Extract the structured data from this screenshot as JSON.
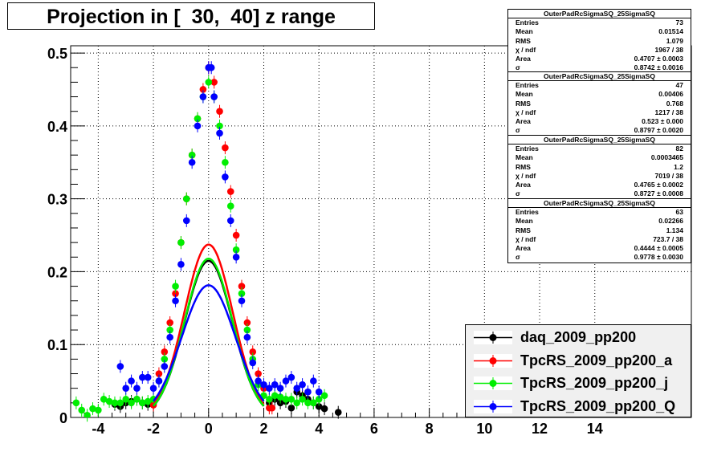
{
  "title": "Projection in [  30,  40] z range",
  "colors": {
    "black": "#000000",
    "red": "#ff0000",
    "green": "#00ee00",
    "blue": "#0000ff"
  },
  "stat_boxes": [
    {
      "name": "OuterPadRcSigmaSQ_25SigmaSQ",
      "rows": [
        {
          "label": "Entries",
          "value": "73"
        },
        {
          "label": "Mean",
          "value": "0.01514"
        },
        {
          "label": "RMS",
          "value": "1.079"
        },
        {
          "label": "χ  / ndf",
          "value": "1967 / 38"
        },
        {
          "label": "Area",
          "value": "0.4707 ± 0.0003"
        },
        {
          "label": "σ",
          "value": "0.8742 ± 0.0016"
        }
      ]
    },
    {
      "name": "OuterPadRcSigmaSQ_25SigmaSQ",
      "rows": [
        {
          "label": "Entries",
          "value": "47"
        },
        {
          "label": "Mean",
          "value": "0.00406"
        },
        {
          "label": "RMS",
          "value": "0.768"
        },
        {
          "label": "χ  / ndf",
          "value": "1217 / 38"
        },
        {
          "label": "Area",
          "value": "0.523 ± 0.000"
        },
        {
          "label": "σ",
          "value": "0.8797 ± 0.0020"
        }
      ]
    },
    {
      "name": "OuterPadRcSigmaSQ_25SigmaSQ",
      "rows": [
        {
          "label": "Entries",
          "value": "82"
        },
        {
          "label": "Mean",
          "value": "0.0003465"
        },
        {
          "label": "RMS",
          "value": "1.2"
        },
        {
          "label": "χ  / ndf",
          "value": "7019 / 38"
        },
        {
          "label": "Area",
          "value": "0.4765 ± 0.0002"
        },
        {
          "label": "σ",
          "value": "0.8727 ± 0.0008"
        }
      ]
    },
    {
      "name": "OuterPadRcSigmaSQ_25SigmaSQ",
      "rows": [
        {
          "label": "Entries",
          "value": "63"
        },
        {
          "label": "Mean",
          "value": "0.02266"
        },
        {
          "label": "RMS",
          "value": "1.134"
        },
        {
          "label": "χ  / ndf",
          "value": "723.7 / 38"
        },
        {
          "label": "Area",
          "value": "0.4444 ± 0.0005"
        },
        {
          "label": "σ",
          "value": "0.9778 ± 0.0030"
        }
      ]
    }
  ],
  "chart_data": {
    "type": "scatter",
    "title": "Projection in [  30,  40] z range",
    "xlim": [
      -5,
      17.5
    ],
    "ylim": [
      0,
      0.51
    ],
    "x_ticks": [
      -4,
      -2,
      0,
      2,
      4,
      6,
      8,
      10,
      12,
      14
    ],
    "y_ticks": [
      0,
      0.1,
      0.2,
      0.3,
      0.4,
      0.5
    ],
    "x_tick_labels": [
      "-4",
      "-2",
      "0",
      "2",
      "4",
      "6",
      "8",
      "10",
      "12",
      "14"
    ],
    "y_tick_labels": [
      "0",
      "0.1",
      "0.2",
      "0.3",
      "0.4",
      "0.5"
    ],
    "grid": true,
    "legend_position": "bottom-right",
    "series": [
      {
        "name": "daq_2009_pp200",
        "color": "#000000",
        "fit": {
          "area": 0.4707,
          "sigma": 0.8742,
          "mean": 0.0
        },
        "points": [
          [
            -3.4,
            0.018
          ],
          [
            -3.2,
            0.015
          ],
          [
            -3.0,
            0.02
          ],
          [
            -2.8,
            0.022
          ],
          [
            -2.6,
            0.025
          ],
          [
            -2.4,
            0.02
          ],
          [
            -2.2,
            0.018
          ],
          [
            -2.0,
            0.02
          ],
          [
            2.2,
            0.02
          ],
          [
            2.4,
            0.025
          ],
          [
            2.6,
            0.02
          ],
          [
            2.8,
            0.022
          ],
          [
            3.0,
            0.013
          ],
          [
            3.2,
            0.035
          ],
          [
            3.4,
            0.03
          ],
          [
            3.6,
            0.025
          ],
          [
            3.8,
            0.02
          ],
          [
            4.0,
            0.015
          ],
          [
            4.2,
            0.012
          ],
          [
            4.7,
            0.007
          ]
        ]
      },
      {
        "name": "TpcRS_2009_pp200_a",
        "color": "#ff0000",
        "fit": {
          "area": 0.523,
          "sigma": 0.8797,
          "mean": 0.0
        },
        "points": [
          [
            -2.0,
            0.017
          ],
          [
            -1.8,
            0.06
          ],
          [
            -1.6,
            0.09
          ],
          [
            -1.4,
            0.13
          ],
          [
            -1.2,
            0.17
          ],
          [
            -1.0,
            0.24
          ],
          [
            -0.8,
            0.3
          ],
          [
            -0.6,
            0.36
          ],
          [
            -0.4,
            0.41
          ],
          [
            -0.2,
            0.45
          ],
          [
            0.0,
            0.48
          ],
          [
            0.2,
            0.46
          ],
          [
            0.4,
            0.42
          ],
          [
            0.6,
            0.37
          ],
          [
            0.8,
            0.31
          ],
          [
            1.0,
            0.25
          ],
          [
            1.2,
            0.18
          ],
          [
            1.4,
            0.13
          ],
          [
            1.6,
            0.09
          ],
          [
            1.8,
            0.06
          ],
          [
            2.0,
            0.04
          ],
          [
            2.2,
            0.013
          ],
          [
            2.3,
            0.013
          ]
        ]
      },
      {
        "name": "TpcRS_2009_pp200_j",
        "color": "#00ee00",
        "fit": {
          "area": 0.4765,
          "sigma": 0.8727,
          "mean": 0.0
        },
        "points": [
          [
            -4.8,
            0.02
          ],
          [
            -4.6,
            0.01
          ],
          [
            -4.4,
            0.003
          ],
          [
            -4.2,
            0.012
          ],
          [
            -4.0,
            0.01
          ],
          [
            -3.8,
            0.025
          ],
          [
            -3.6,
            0.022
          ],
          [
            -3.4,
            0.02
          ],
          [
            -3.2,
            0.02
          ],
          [
            -3.0,
            0.025
          ],
          [
            -2.8,
            0.02
          ],
          [
            -2.6,
            0.025
          ],
          [
            -2.4,
            0.02
          ],
          [
            -2.2,
            0.022
          ],
          [
            -2.0,
            0.025
          ],
          [
            -1.8,
            0.05
          ],
          [
            -1.6,
            0.08
          ],
          [
            -1.4,
            0.12
          ],
          [
            -1.2,
            0.18
          ],
          [
            -1.0,
            0.24
          ],
          [
            -0.8,
            0.3
          ],
          [
            -0.6,
            0.36
          ],
          [
            -0.4,
            0.41
          ],
          [
            -0.2,
            0.44
          ],
          [
            0.0,
            0.46
          ],
          [
            0.2,
            0.44
          ],
          [
            0.4,
            0.4
          ],
          [
            0.6,
            0.35
          ],
          [
            0.8,
            0.29
          ],
          [
            1.0,
            0.23
          ],
          [
            1.2,
            0.17
          ],
          [
            1.4,
            0.12
          ],
          [
            1.6,
            0.08
          ],
          [
            1.8,
            0.045
          ],
          [
            2.0,
            0.03
          ],
          [
            2.2,
            0.025
          ],
          [
            2.4,
            0.03
          ],
          [
            2.6,
            0.028
          ],
          [
            2.8,
            0.025
          ],
          [
            3.0,
            0.025
          ],
          [
            3.2,
            0.02
          ],
          [
            3.4,
            0.025
          ],
          [
            3.6,
            0.02
          ],
          [
            3.8,
            0.02
          ],
          [
            4.0,
            0.025
          ],
          [
            4.2,
            0.03
          ]
        ]
      },
      {
        "name": "TpcRS_2009_pp200_Q",
        "color": "#0000ff",
        "fit": {
          "area": 0.4444,
          "sigma": 0.9778,
          "mean": 0.0
        },
        "points": [
          [
            -3.2,
            0.07
          ],
          [
            -3.0,
            0.04
          ],
          [
            -2.8,
            0.05
          ],
          [
            -2.6,
            0.04
          ],
          [
            -2.4,
            0.055
          ],
          [
            -2.2,
            0.055
          ],
          [
            -2.0,
            0.04
          ],
          [
            -1.8,
            0.05
          ],
          [
            -1.6,
            0.07
          ],
          [
            -1.4,
            0.11
          ],
          [
            -1.2,
            0.16
          ],
          [
            -1.0,
            0.21
          ],
          [
            -0.8,
            0.27
          ],
          [
            -0.6,
            0.35
          ],
          [
            -0.4,
            0.4
          ],
          [
            -0.2,
            0.44
          ],
          [
            0.0,
            0.48
          ],
          [
            0.1,
            0.48
          ],
          [
            0.2,
            0.44
          ],
          [
            0.4,
            0.39
          ],
          [
            0.6,
            0.33
          ],
          [
            0.8,
            0.27
          ],
          [
            1.0,
            0.22
          ],
          [
            1.2,
            0.16
          ],
          [
            1.4,
            0.11
          ],
          [
            1.6,
            0.075
          ],
          [
            1.8,
            0.05
          ],
          [
            2.0,
            0.045
          ],
          [
            2.2,
            0.04
          ],
          [
            2.4,
            0.045
          ],
          [
            2.6,
            0.04
          ],
          [
            2.8,
            0.05
          ],
          [
            3.0,
            0.055
          ],
          [
            3.2,
            0.04
          ],
          [
            3.4,
            0.045
          ],
          [
            3.6,
            0.035
          ],
          [
            3.8,
            0.05
          ],
          [
            4.0,
            0.035
          ]
        ]
      }
    ]
  }
}
